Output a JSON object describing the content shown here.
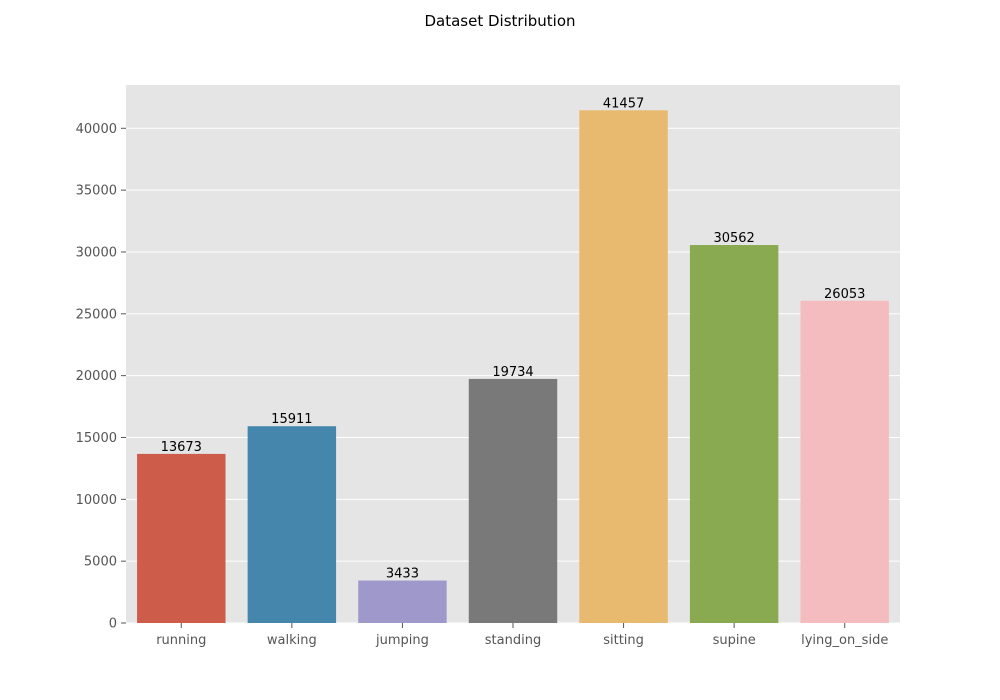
{
  "chart_data": {
    "type": "bar",
    "title": "Dataset Distribution",
    "xlabel": "",
    "ylabel": "",
    "categories": [
      "running",
      "walking",
      "jumping",
      "standing",
      "sitting",
      "supine",
      "lying_on_side"
    ],
    "values": [
      13673,
      15911,
      3433,
      19734,
      41457,
      30562,
      26053
    ],
    "colors": [
      "#cd5c4b",
      "#4586ad",
      "#9f98cb",
      "#797979",
      "#e8ba70",
      "#8aaa52",
      "#f5bcc0"
    ],
    "ylim": [
      0,
      43500
    ],
    "yticks": [
      0,
      5000,
      10000,
      15000,
      20000,
      25000,
      30000,
      35000,
      40000
    ],
    "grid": true,
    "background_color": "#e5e5e5",
    "grid_color": "#ffffff",
    "data_labels": true
  }
}
